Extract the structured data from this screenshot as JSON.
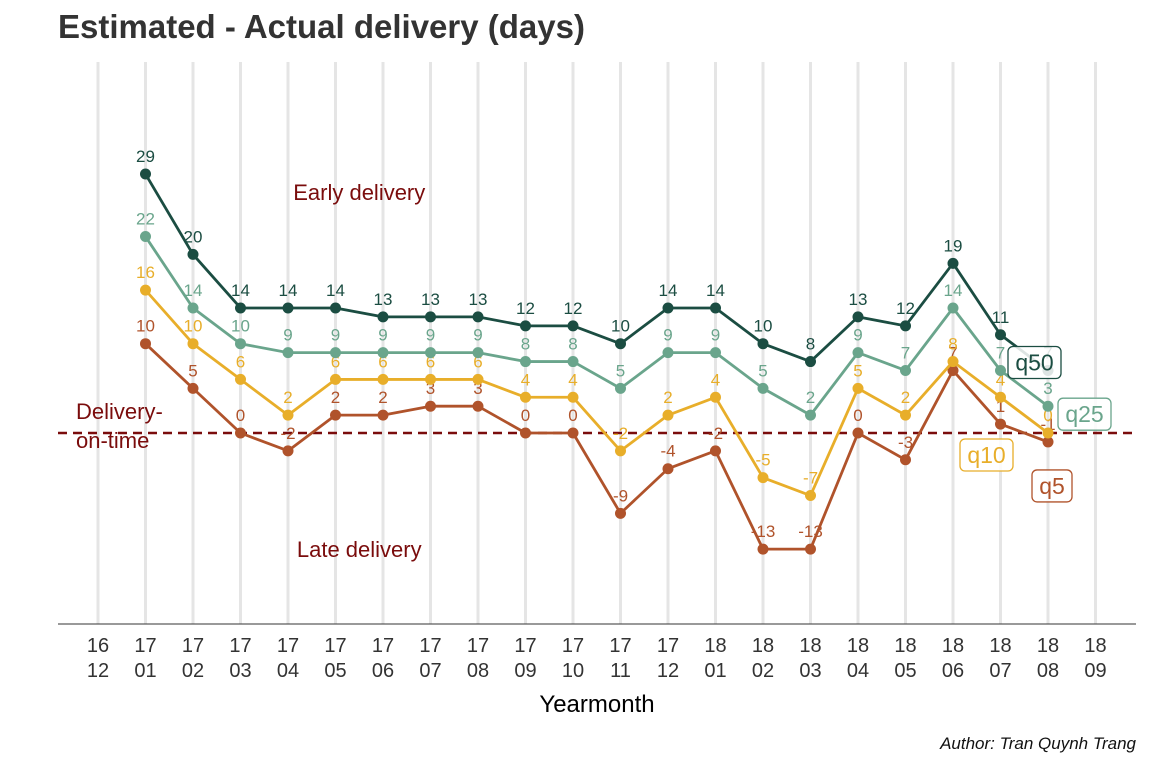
{
  "title": "Estimated - Actual delivery (days)",
  "caption": "Author: Tran Quynh Trang",
  "chart_data": {
    "type": "line",
    "title": "Estimated - Actual delivery (days)",
    "xlabel": "Yearmonth",
    "ylabel": "",
    "x_ticks": [
      {
        "top": "16",
        "bottom": "12"
      },
      {
        "top": "17",
        "bottom": "01"
      },
      {
        "top": "17",
        "bottom": "02"
      },
      {
        "top": "17",
        "bottom": "03"
      },
      {
        "top": "17",
        "bottom": "04"
      },
      {
        "top": "17",
        "bottom": "05"
      },
      {
        "top": "17",
        "bottom": "06"
      },
      {
        "top": "17",
        "bottom": "07"
      },
      {
        "top": "17",
        "bottom": "08"
      },
      {
        "top": "17",
        "bottom": "09"
      },
      {
        "top": "17",
        "bottom": "10"
      },
      {
        "top": "17",
        "bottom": "11"
      },
      {
        "top": "17",
        "bottom": "12"
      },
      {
        "top": "18",
        "bottom": "01"
      },
      {
        "top": "18",
        "bottom": "02"
      },
      {
        "top": "18",
        "bottom": "03"
      },
      {
        "top": "18",
        "bottom": "04"
      },
      {
        "top": "18",
        "bottom": "05"
      },
      {
        "top": "18",
        "bottom": "06"
      },
      {
        "top": "18",
        "bottom": "07"
      },
      {
        "top": "18",
        "bottom": "08"
      },
      {
        "top": "18",
        "bottom": "09"
      }
    ],
    "ylim": [
      -21,
      36
    ],
    "grid": "vertical",
    "series": [
      {
        "name": "q50",
        "color": "#1b4d42",
        "start_index": 1,
        "values": [
          29,
          20,
          14,
          14,
          14,
          13,
          13,
          13,
          12,
          12,
          10,
          14,
          14,
          10,
          8,
          13,
          12,
          19,
          11,
          7
        ]
      },
      {
        "name": "q25",
        "color": "#6aa58c",
        "start_index": 1,
        "values": [
          22,
          14,
          10,
          9,
          9,
          9,
          9,
          9,
          8,
          8,
          5,
          9,
          9,
          5,
          2,
          9,
          7,
          14,
          7,
          3
        ]
      },
      {
        "name": "q10",
        "color": "#e8ae2a",
        "start_index": 1,
        "values": [
          16,
          10,
          6,
          2,
          6,
          6,
          6,
          6,
          4,
          4,
          -2,
          2,
          4,
          -5,
          -7,
          5,
          2,
          8,
          4,
          0
        ]
      },
      {
        "name": "q5",
        "color": "#b0532b",
        "start_index": 1,
        "values": [
          10,
          5,
          0,
          -2,
          2,
          2,
          3,
          3,
          0,
          0,
          -9,
          -4,
          -2,
          -13,
          -13,
          0,
          -3,
          7,
          1,
          -1
        ]
      }
    ],
    "reference_line": {
      "y": 0,
      "label": "Delivery-\non-time",
      "color": "#7a0c0c",
      "style": "dashed"
    },
    "annotations": [
      {
        "text": "Early delivery",
        "x_index": 5.5,
        "y": 27,
        "color": "#7a0c0c"
      },
      {
        "text": "Late delivery",
        "x_index": 5.5,
        "y": -13,
        "color": "#7a0c0c"
      }
    ]
  }
}
